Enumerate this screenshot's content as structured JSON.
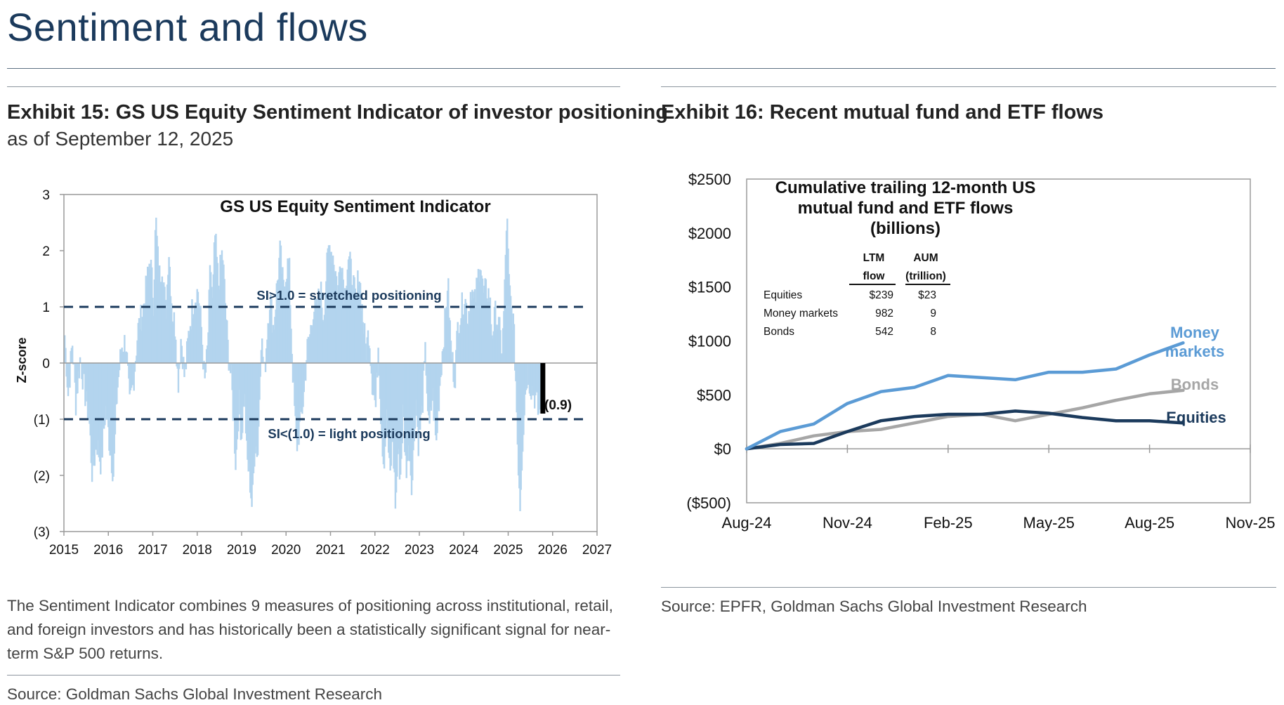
{
  "header": {
    "title": "Sentiment and flows"
  },
  "exhibit15": {
    "title": "Exhibit 15: GS US Equity Sentiment Indicator of investor positioning",
    "subtitle": "as of September 12, 2025",
    "note": "The Sentiment Indicator combines 9 measures of positioning across institutional, retail, and foreign investors and has historically been a statistically significant signal for near-term S&P 500 returns.",
    "source": "Source: Goldman Sachs Global Investment Research"
  },
  "exhibit16": {
    "title": "Exhibit 16: Recent mutual fund and ETF flows",
    "source": "Source: EPFR, Goldman Sachs Global Investment Research"
  },
  "chart_data": [
    {
      "type": "bar",
      "title": "GS US Equity Sentiment Indicator",
      "ylabel": "Z-score",
      "xlim": [
        2015,
        2027
      ],
      "ylim": [
        -3,
        3
      ],
      "x_ticks": [
        "2015",
        "2016",
        "2017",
        "2018",
        "2019",
        "2020",
        "2021",
        "2022",
        "2023",
        "2024",
        "2025",
        "2026",
        "2027"
      ],
      "y_ticks": [
        "3",
        "2",
        "1",
        "0",
        "(1)",
        "(2)",
        "(3)"
      ],
      "reference_lines": [
        {
          "value": 1.0,
          "label": "SI>1.0 = stretched positioning"
        },
        {
          "value": -1.0,
          "label": "SI<(1.0) = light positioning"
        }
      ],
      "latest": {
        "date": "2025-09-12",
        "value": -0.9,
        "label": "(0.9)"
      },
      "series_color": "#b3d4ee",
      "anchors": [
        [
          2015.0,
          0.5
        ],
        [
          2015.08,
          -0.6
        ],
        [
          2015.17,
          0.4
        ],
        [
          2015.25,
          -0.7
        ],
        [
          2015.35,
          0.1
        ],
        [
          2015.45,
          -0.5
        ],
        [
          2015.55,
          -1.0
        ],
        [
          2015.62,
          -2.0
        ],
        [
          2015.72,
          -1.4
        ],
        [
          2015.82,
          -1.8
        ],
        [
          2015.92,
          -0.8
        ],
        [
          2016.02,
          -1.5
        ],
        [
          2016.1,
          -2.0
        ],
        [
          2016.18,
          -0.5
        ],
        [
          2016.28,
          0.3
        ],
        [
          2016.38,
          0.4
        ],
        [
          2016.46,
          -0.8
        ],
        [
          2016.55,
          -0.3
        ],
        [
          2016.65,
          0.6
        ],
        [
          2016.75,
          0.9
        ],
        [
          2016.85,
          1.4
        ],
        [
          2016.92,
          1.9
        ],
        [
          2017.0,
          1.1
        ],
        [
          2017.05,
          2.6
        ],
        [
          2017.12,
          1.5
        ],
        [
          2017.2,
          1.8
        ],
        [
          2017.28,
          0.8
        ],
        [
          2017.34,
          2.1
        ],
        [
          2017.42,
          0.9
        ],
        [
          2017.5,
          0.6
        ],
        [
          2017.55,
          -0.4
        ],
        [
          2017.62,
          0.5
        ],
        [
          2017.7,
          -0.3
        ],
        [
          2017.8,
          0.6
        ],
        [
          2017.9,
          1.1
        ],
        [
          2018.0,
          1.3
        ],
        [
          2018.08,
          0.6
        ],
        [
          2018.15,
          -0.4
        ],
        [
          2018.22,
          0.3
        ],
        [
          2018.28,
          1.8
        ],
        [
          2018.33,
          1.0
        ],
        [
          2018.38,
          2.3
        ],
        [
          2018.46,
          1.4
        ],
        [
          2018.55,
          2.0
        ],
        [
          2018.62,
          1.0
        ],
        [
          2018.68,
          0.2
        ],
        [
          2018.75,
          -0.3
        ],
        [
          2018.8,
          -1.0
        ],
        [
          2018.85,
          -1.8
        ],
        [
          2018.92,
          -0.7
        ],
        [
          2018.98,
          -1.3
        ],
        [
          2019.05,
          -0.5
        ],
        [
          2019.1,
          -1.7
        ],
        [
          2019.16,
          -2.0
        ],
        [
          2019.22,
          -2.6
        ],
        [
          2019.28,
          -1.4
        ],
        [
          2019.35,
          -1.6
        ],
        [
          2019.42,
          0.5
        ],
        [
          2019.5,
          -0.2
        ],
        [
          2019.56,
          0.6
        ],
        [
          2019.62,
          1.2
        ],
        [
          2019.7,
          0.6
        ],
        [
          2019.78,
          1.4
        ],
        [
          2019.85,
          2.0
        ],
        [
          2019.92,
          1.3
        ],
        [
          2020.0,
          1.7
        ],
        [
          2020.05,
          1.8
        ],
        [
          2020.1,
          0.6
        ],
        [
          2020.15,
          -0.5
        ],
        [
          2020.22,
          -1.5
        ],
        [
          2020.3,
          -1.1
        ],
        [
          2020.38,
          -0.6
        ],
        [
          2020.45,
          0.2
        ],
        [
          2020.52,
          0.5
        ],
        [
          2020.6,
          1.0
        ],
        [
          2020.68,
          0.9
        ],
        [
          2020.75,
          1.4
        ],
        [
          2020.82,
          0.8
        ],
        [
          2020.88,
          1.5
        ],
        [
          2020.95,
          2.1
        ],
        [
          2021.05,
          1.9
        ],
        [
          2021.15,
          1.3
        ],
        [
          2021.22,
          2.0
        ],
        [
          2021.3,
          1.2
        ],
        [
          2021.38,
          1.9
        ],
        [
          2021.48,
          1.5
        ],
        [
          2021.56,
          1.0
        ],
        [
          2021.62,
          1.7
        ],
        [
          2021.7,
          0.9
        ],
        [
          2021.78,
          0.2
        ],
        [
          2021.85,
          0.6
        ],
        [
          2021.92,
          -0.3
        ],
        [
          2022.0,
          -0.8
        ],
        [
          2022.06,
          0.4
        ],
        [
          2022.12,
          -1.0
        ],
        [
          2022.18,
          -1.8
        ],
        [
          2022.25,
          -1.0
        ],
        [
          2022.32,
          -2.1
        ],
        [
          2022.38,
          -1.3
        ],
        [
          2022.45,
          -2.6
        ],
        [
          2022.5,
          -1.6
        ],
        [
          2022.56,
          -2.0
        ],
        [
          2022.62,
          -0.8
        ],
        [
          2022.68,
          -1.9
        ],
        [
          2022.75,
          -1.5
        ],
        [
          2022.82,
          -2.2
        ],
        [
          2022.9,
          -0.6
        ],
        [
          2022.96,
          -1.4
        ],
        [
          2023.04,
          -0.9
        ],
        [
          2023.12,
          0.2
        ],
        [
          2023.2,
          -1.3
        ],
        [
          2023.28,
          -0.5
        ],
        [
          2023.36,
          -1.5
        ],
        [
          2023.44,
          -0.4
        ],
        [
          2023.52,
          0.4
        ],
        [
          2023.58,
          0.9
        ],
        [
          2023.62,
          1.5
        ],
        [
          2023.7,
          0.2
        ],
        [
          2023.78,
          -0.3
        ],
        [
          2023.85,
          0.7
        ],
        [
          2023.92,
          0.9
        ],
        [
          2024.0,
          1.2
        ],
        [
          2024.08,
          0.8
        ],
        [
          2024.15,
          1.4
        ],
        [
          2024.22,
          1.0
        ],
        [
          2024.3,
          1.5
        ],
        [
          2024.35,
          1.9
        ],
        [
          2024.42,
          1.2
        ],
        [
          2024.5,
          1.3
        ],
        [
          2024.56,
          1.2
        ],
        [
          2024.62,
          0.5
        ],
        [
          2024.7,
          0.9
        ],
        [
          2024.78,
          0.6
        ],
        [
          2024.85,
          0.2
        ],
        [
          2024.9,
          1.2
        ],
        [
          2024.95,
          2.7
        ],
        [
          2025.0,
          1.4
        ],
        [
          2025.05,
          1.0
        ],
        [
          2025.1,
          0.7
        ],
        [
          2025.15,
          -0.2
        ],
        [
          2025.2,
          -1.6
        ],
        [
          2025.25,
          -2.5
        ],
        [
          2025.3,
          -1.5
        ],
        [
          2025.36,
          -0.6
        ],
        [
          2025.42,
          -0.1
        ],
        [
          2025.48,
          -0.4
        ],
        [
          2025.55,
          -0.5
        ],
        [
          2025.62,
          -0.7
        ],
        [
          2025.66,
          -0.9
        ],
        [
          2025.7,
          -0.9
        ]
      ]
    },
    {
      "type": "line",
      "title": "Cumulative trailing 12-month US mutual fund and ETF flows (billions)",
      "x_ticks": [
        "Aug-24",
        "Nov-24",
        "Feb-25",
        "May-25",
        "Aug-25",
        "Nov-25"
      ],
      "y_ticks": [
        "$2500",
        "$2000",
        "$1500",
        "$1000",
        "$500",
        "$0",
        "($500)"
      ],
      "ylim": [
        -500,
        2500
      ],
      "xlim": [
        0,
        15
      ],
      "series": [
        {
          "name": "Money\nmarkets",
          "color": "#5b9bd5",
          "x": [
            0,
            1,
            2,
            3,
            4,
            5,
            6,
            7,
            8,
            9,
            10,
            11,
            12,
            13
          ],
          "values": [
            0,
            160,
            230,
            420,
            530,
            570,
            680,
            660,
            640,
            710,
            710,
            740,
            870,
            982
          ]
        },
        {
          "name": "Bonds",
          "color": "#a6a6a6",
          "x": [
            0,
            1,
            2,
            3,
            4,
            5,
            6,
            7,
            8,
            9,
            10,
            11,
            12,
            13
          ],
          "values": [
            0,
            50,
            120,
            160,
            180,
            240,
            300,
            320,
            260,
            320,
            380,
            450,
            510,
            542
          ]
        },
        {
          "name": "Equities",
          "color": "#1b3a5c",
          "x": [
            0,
            1,
            2,
            3,
            4,
            5,
            6,
            7,
            8,
            9,
            10,
            11,
            12,
            13
          ],
          "values": [
            0,
            40,
            50,
            160,
            260,
            300,
            320,
            320,
            350,
            330,
            290,
            260,
            260,
            239
          ]
        }
      ],
      "table": {
        "headers": [
          [
            "LTM",
            "flow"
          ],
          [
            "AUM",
            "(trillion)"
          ]
        ],
        "rows": [
          {
            "label": "Equities",
            "flow": "$239",
            "aum": "$23"
          },
          {
            "label": "Money markets",
            "flow": "982",
            "aum": "9"
          },
          {
            "label": "Bonds",
            "flow": "542",
            "aum": "8"
          }
        ]
      }
    }
  ]
}
